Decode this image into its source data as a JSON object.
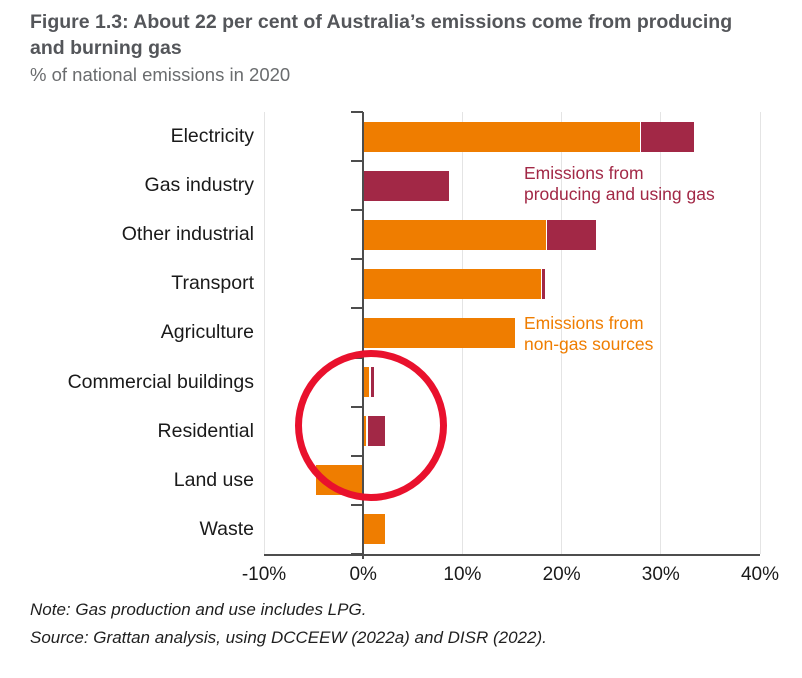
{
  "figure": {
    "title": "Figure 1.3: About 22 per cent of Australia’s emissions come from producing and burning gas",
    "subtitle": "% of national emissions in 2020",
    "note": "Note: Gas production and use includes LPG.",
    "source": "Source: Grattan analysis, using DCCEEW (2022a) and DISR (2022)."
  },
  "annotations": {
    "gas_line1": "Emissions from",
    "gas_line2": "producing and using gas",
    "nongas_line1": "Emissions from",
    "nongas_line2": "non-gas sources"
  },
  "colors": {
    "non_gas_orange": "#EF7D00",
    "gas_maroon": "#A22846",
    "highlight_red": "#E9112D",
    "title_gray": "#54565A",
    "subtitle_gray": "#6A6C6E",
    "grid_gray": "#E4E4E4",
    "axis_dark": "#4D4D4D",
    "label_black": "#1A1A1A"
  },
  "chart_data": {
    "type": "bar",
    "orientation": "horizontal",
    "stacked": true,
    "title": "Figure 1.3: About 22 per cent of Australia’s emissions come from producing and burning gas",
    "subtitle_as_axis_note": "% of national emissions in 2020",
    "categories": [
      "Electricity",
      "Gas industry",
      "Other industrial",
      "Transport",
      "Agriculture",
      "Commercial buildings",
      "Residential",
      "Land use",
      "Waste"
    ],
    "series": [
      {
        "name": "Emissions from non-gas sources",
        "color": "#EF7D00",
        "values": [
          27.9,
          0,
          18.4,
          17.9,
          15.3,
          0.6,
          0.3,
          -4.8,
          2.2
        ]
      },
      {
        "name": "Emissions from producing and using gas",
        "color": "#A22846",
        "values": [
          5.4,
          8.7,
          5.1,
          0.4,
          0,
          0.5,
          1.9,
          0,
          0
        ]
      }
    ],
    "totals": [
      33.3,
      8.7,
      23.5,
      18.3,
      15.3,
      1.1,
      2.2,
      -4.8,
      2.2
    ],
    "gas_share_total": 22.0,
    "xlim": [
      -10,
      40
    ],
    "xtick_values": [
      -10,
      0,
      10,
      20,
      30,
      40
    ],
    "xticks": [
      "-10%",
      "0%",
      "10%",
      "20%",
      "30%",
      "40%"
    ],
    "gridlines": true,
    "legend_position": "inside-right-annotations",
    "highlight": "red circle around Commercial buildings and Residential bars"
  }
}
